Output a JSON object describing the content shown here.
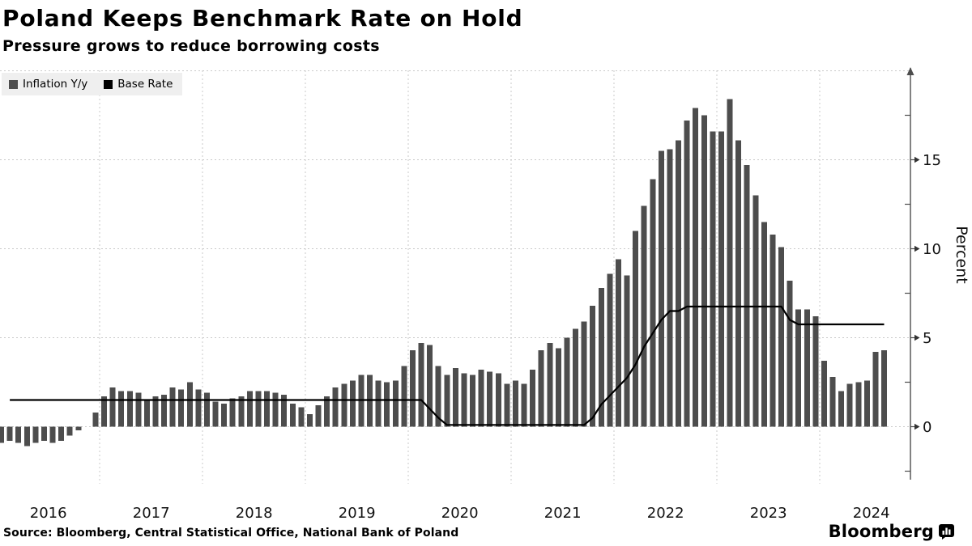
{
  "header": {
    "title": "Poland Keeps Benchmark Rate on Hold",
    "subtitle": "Pressure grows to reduce borrowing costs"
  },
  "legend": {
    "items": [
      {
        "label": "Inflation Y/y",
        "color": "#4d4d4d"
      },
      {
        "label": "Base Rate",
        "color": "#000000"
      }
    ]
  },
  "footer": {
    "source": "Source: Bloomberg, Central Statistical Office, National Bank of Poland",
    "brand": "Bloomberg"
  },
  "chart_data": {
    "type": "bar",
    "title": "Poland Keeps Benchmark Rate on Hold",
    "subtitle": "Pressure grows to reduce borrowing costs",
    "frequency": "monthly",
    "x_start": "2016-01",
    "x_end": "2024-08",
    "x_year_labels": [
      "2016",
      "2017",
      "2018",
      "2019",
      "2020",
      "2021",
      "2022",
      "2023",
      "2024"
    ],
    "y_axis": {
      "label": "Percent",
      "major_ticks": [
        0,
        5,
        10,
        15
      ],
      "minor_ticks": [
        -2.5,
        2.5,
        7.5,
        12.5,
        17.5
      ],
      "gridlines": [
        0,
        5,
        10,
        15,
        20
      ],
      "range": [
        -2.9,
        20.2
      ],
      "grid": "dashed"
    },
    "colors": {
      "bar": "#4d4d4d",
      "line": "#000000",
      "grid": "#c9c9c9",
      "axis": "#4d4d4d"
    },
    "series": [
      {
        "name": "Inflation Y/y",
        "type": "bar",
        "color": "#4d4d4d",
        "values": [
          -0.9,
          -0.8,
          -0.9,
          -1.1,
          -0.9,
          -0.8,
          -0.9,
          -0.8,
          -0.5,
          -0.2,
          0.0,
          0.8,
          1.7,
          2.2,
          2.0,
          2.0,
          1.9,
          1.5,
          1.7,
          1.8,
          2.2,
          2.1,
          2.5,
          2.1,
          1.9,
          1.4,
          1.3,
          1.6,
          1.7,
          2.0,
          2.0,
          2.0,
          1.9,
          1.8,
          1.3,
          1.1,
          0.7,
          1.2,
          1.7,
          2.2,
          2.4,
          2.6,
          2.9,
          2.9,
          2.6,
          2.5,
          2.6,
          3.4,
          4.3,
          4.7,
          4.6,
          3.4,
          2.9,
          3.3,
          3.0,
          2.9,
          3.2,
          3.1,
          3.0,
          2.4,
          2.6,
          2.4,
          3.2,
          4.3,
          4.7,
          4.4,
          5.0,
          5.5,
          5.9,
          6.8,
          7.8,
          8.6,
          9.4,
          8.5,
          11.0,
          12.4,
          13.9,
          15.5,
          15.6,
          16.1,
          17.2,
          17.9,
          17.5,
          16.6,
          16.6,
          18.4,
          16.1,
          14.7,
          13.0,
          11.5,
          10.8,
          10.1,
          8.2,
          6.6,
          6.6,
          6.2,
          3.7,
          2.8,
          2.0,
          2.4,
          2.5,
          2.6,
          4.2,
          4.3
        ]
      },
      {
        "name": "Base Rate",
        "type": "line",
        "color": "#000000",
        "values": [
          1.5,
          1.5,
          1.5,
          1.5,
          1.5,
          1.5,
          1.5,
          1.5,
          1.5,
          1.5,
          1.5,
          1.5,
          1.5,
          1.5,
          1.5,
          1.5,
          1.5,
          1.5,
          1.5,
          1.5,
          1.5,
          1.5,
          1.5,
          1.5,
          1.5,
          1.5,
          1.5,
          1.5,
          1.5,
          1.5,
          1.5,
          1.5,
          1.5,
          1.5,
          1.5,
          1.5,
          1.5,
          1.5,
          1.5,
          1.5,
          1.5,
          1.5,
          1.5,
          1.5,
          1.5,
          1.5,
          1.5,
          1.5,
          1.5,
          1.5,
          1.0,
          0.5,
          0.1,
          0.1,
          0.1,
          0.1,
          0.1,
          0.1,
          0.1,
          0.1,
          0.1,
          0.1,
          0.1,
          0.1,
          0.1,
          0.1,
          0.1,
          0.1,
          0.1,
          0.5,
          1.25,
          1.75,
          2.25,
          2.75,
          3.5,
          4.5,
          5.25,
          6.0,
          6.5,
          6.5,
          6.75,
          6.75,
          6.75,
          6.75,
          6.75,
          6.75,
          6.75,
          6.75,
          6.75,
          6.75,
          6.75,
          6.75,
          6.0,
          5.75,
          5.75,
          5.75,
          5.75,
          5.75,
          5.75,
          5.75,
          5.75,
          5.75,
          5.75,
          5.75
        ]
      }
    ]
  }
}
